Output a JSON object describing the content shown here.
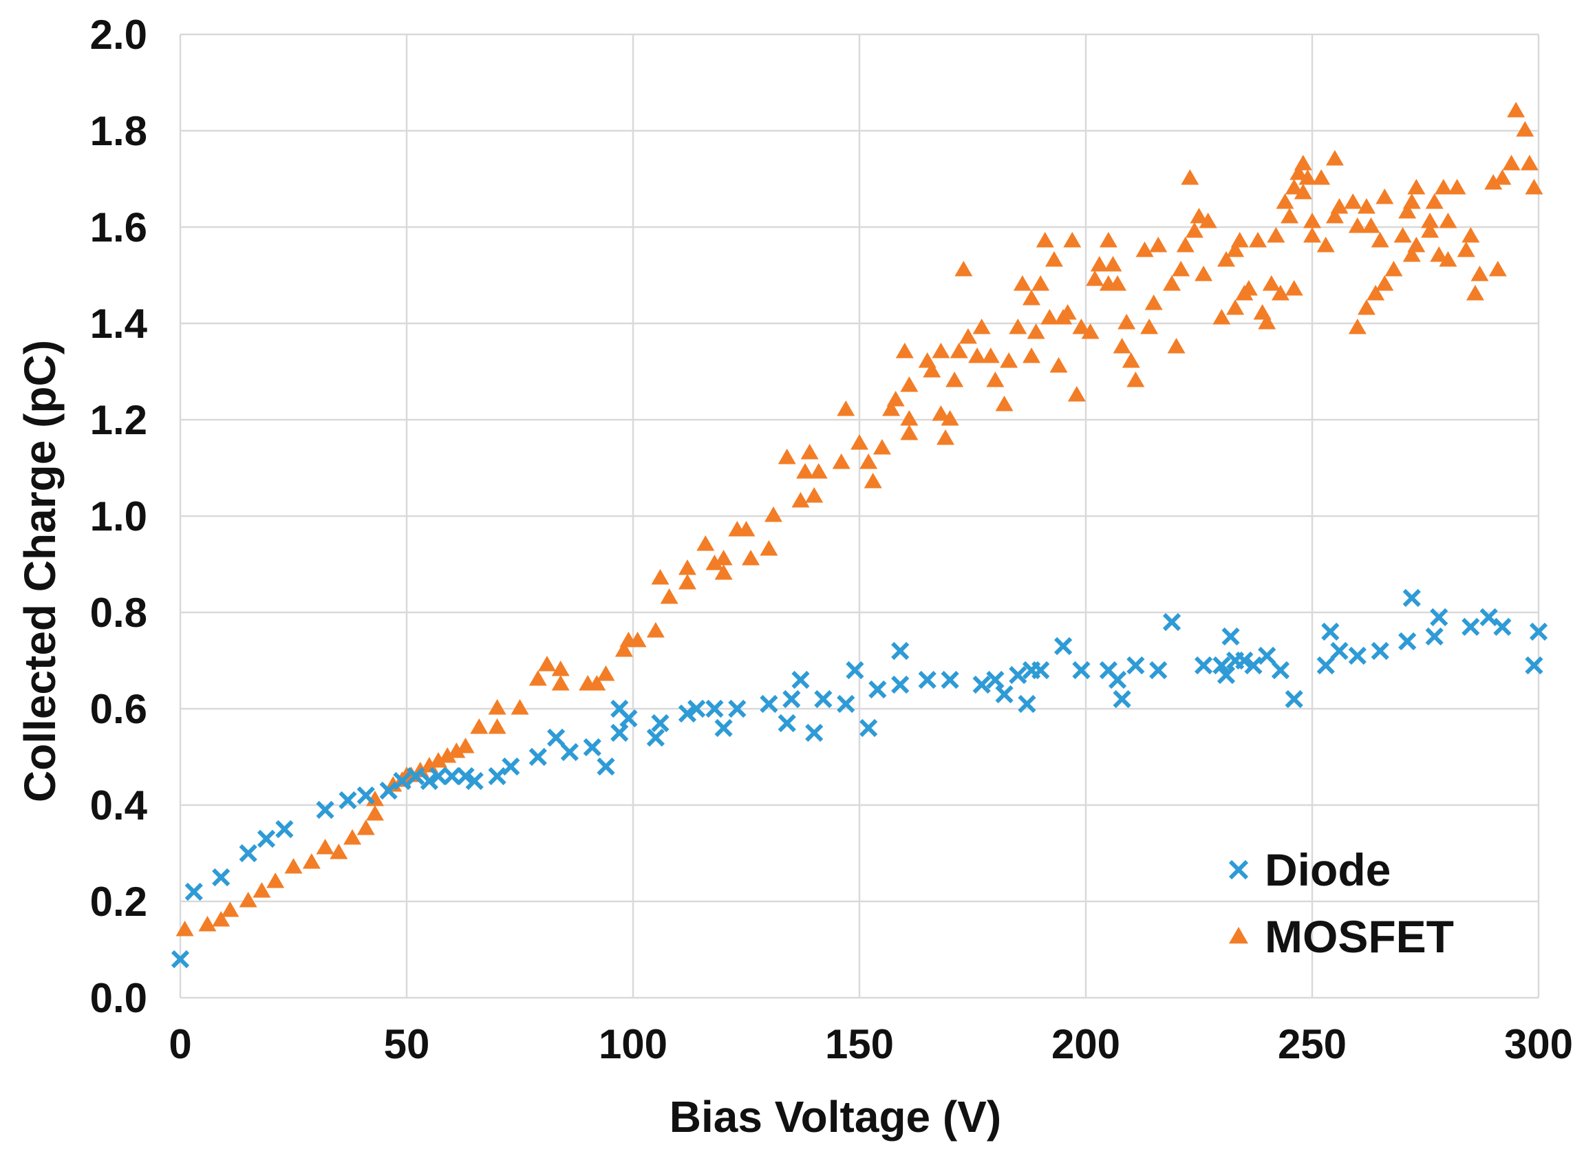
{
  "chart_data": {
    "type": "scatter",
    "title": "",
    "xlabel": "Bias Voltage (V)",
    "ylabel": "Collected Charge (pC)",
    "xlim": [
      0,
      300
    ],
    "ylim": [
      0,
      2.0
    ],
    "xticks": [
      0,
      50,
      100,
      150,
      200,
      250,
      300
    ],
    "yticks": [
      0.0,
      0.2,
      0.4,
      0.6,
      0.8,
      1.0,
      1.2,
      1.4,
      1.6,
      1.8,
      2.0
    ],
    "xtick_labels": [
      "0",
      "50",
      "100",
      "150",
      "200",
      "250",
      "300"
    ],
    "ytick_labels": [
      "0.0",
      "0.2",
      "0.4",
      "0.6",
      "0.8",
      "1.0",
      "1.2",
      "1.4",
      "1.6",
      "1.8",
      "2.0"
    ],
    "grid": true,
    "legend_position": "bottom-right",
    "series": [
      {
        "name": "Diode",
        "marker": "x",
        "color": "#2e9bd6",
        "points": [
          [
            0,
            0.08
          ],
          [
            3,
            0.22
          ],
          [
            9,
            0.25
          ],
          [
            15,
            0.3
          ],
          [
            19,
            0.33
          ],
          [
            23,
            0.35
          ],
          [
            32,
            0.39
          ],
          [
            37,
            0.41
          ],
          [
            41,
            0.42
          ],
          [
            46,
            0.43
          ],
          [
            49,
            0.45
          ],
          [
            52,
            0.46
          ],
          [
            55,
            0.45
          ],
          [
            57,
            0.46
          ],
          [
            60,
            0.46
          ],
          [
            63,
            0.46
          ],
          [
            65,
            0.45
          ],
          [
            70,
            0.46
          ],
          [
            73,
            0.48
          ],
          [
            79,
            0.5
          ],
          [
            83,
            0.54
          ],
          [
            86,
            0.51
          ],
          [
            91,
            0.52
          ],
          [
            94,
            0.48
          ],
          [
            97,
            0.6
          ],
          [
            97,
            0.55
          ],
          [
            99,
            0.58
          ],
          [
            105,
            0.54
          ],
          [
            106,
            0.57
          ],
          [
            112,
            0.59
          ],
          [
            114,
            0.6
          ],
          [
            118,
            0.6
          ],
          [
            120,
            0.56
          ],
          [
            123,
            0.6
          ],
          [
            130,
            0.61
          ],
          [
            134,
            0.57
          ],
          [
            135,
            0.62
          ],
          [
            137,
            0.66
          ],
          [
            140,
            0.55
          ],
          [
            142,
            0.62
          ],
          [
            147,
            0.61
          ],
          [
            149,
            0.68
          ],
          [
            152,
            0.56
          ],
          [
            154,
            0.64
          ],
          [
            159,
            0.72
          ],
          [
            159,
            0.65
          ],
          [
            165,
            0.66
          ],
          [
            170,
            0.66
          ],
          [
            177,
            0.65
          ],
          [
            180,
            0.66
          ],
          [
            182,
            0.63
          ],
          [
            185,
            0.67
          ],
          [
            187,
            0.61
          ],
          [
            188,
            0.68
          ],
          [
            190,
            0.68
          ],
          [
            195,
            0.73
          ],
          [
            199,
            0.68
          ],
          [
            205,
            0.68
          ],
          [
            207,
            0.66
          ],
          [
            208,
            0.62
          ],
          [
            211,
            0.69
          ],
          [
            216,
            0.68
          ],
          [
            219,
            0.78
          ],
          [
            226,
            0.69
          ],
          [
            230,
            0.69
          ],
          [
            231,
            0.67
          ],
          [
            232,
            0.75
          ],
          [
            233,
            0.7
          ],
          [
            235,
            0.7
          ],
          [
            237,
            0.69
          ],
          [
            240,
            0.71
          ],
          [
            243,
            0.68
          ],
          [
            246,
            0.62
          ],
          [
            253,
            0.69
          ],
          [
            254,
            0.76
          ],
          [
            256,
            0.72
          ],
          [
            260,
            0.71
          ],
          [
            265,
            0.72
          ],
          [
            271,
            0.74
          ],
          [
            272,
            0.83
          ],
          [
            277,
            0.75
          ],
          [
            278,
            0.79
          ],
          [
            285,
            0.77
          ],
          [
            289,
            0.79
          ],
          [
            292,
            0.77
          ],
          [
            299,
            0.69
          ],
          [
            300,
            0.76
          ]
        ]
      },
      {
        "name": "MOSFET",
        "marker": "triangle",
        "color": "#f27d26",
        "points": [
          [
            1,
            0.14
          ],
          [
            6,
            0.15
          ],
          [
            9,
            0.16
          ],
          [
            11,
            0.18
          ],
          [
            15,
            0.2
          ],
          [
            18,
            0.22
          ],
          [
            21,
            0.24
          ],
          [
            25,
            0.27
          ],
          [
            29,
            0.28
          ],
          [
            32,
            0.31
          ],
          [
            35,
            0.3
          ],
          [
            38,
            0.33
          ],
          [
            41,
            0.35
          ],
          [
            43,
            0.38
          ],
          [
            43,
            0.41
          ],
          [
            47,
            0.44
          ],
          [
            49,
            0.45
          ],
          [
            50,
            0.46
          ],
          [
            51,
            0.46
          ],
          [
            53,
            0.47
          ],
          [
            55,
            0.48
          ],
          [
            57,
            0.49
          ],
          [
            59,
            0.5
          ],
          [
            61,
            0.51
          ],
          [
            63,
            0.52
          ],
          [
            66,
            0.56
          ],
          [
            70,
            0.6
          ],
          [
            70,
            0.56
          ],
          [
            75,
            0.6
          ],
          [
            79,
            0.66
          ],
          [
            81,
            0.69
          ],
          [
            84,
            0.68
          ],
          [
            84,
            0.65
          ],
          [
            90,
            0.65
          ],
          [
            92,
            0.65
          ],
          [
            94,
            0.67
          ],
          [
            98,
            0.72
          ],
          [
            99,
            0.74
          ],
          [
            101,
            0.74
          ],
          [
            105,
            0.76
          ],
          [
            106,
            0.87
          ],
          [
            108,
            0.83
          ],
          [
            112,
            0.86
          ],
          [
            112,
            0.89
          ],
          [
            116,
            0.94
          ],
          [
            118,
            0.9
          ],
          [
            120,
            0.91
          ],
          [
            120,
            0.88
          ],
          [
            123,
            0.97
          ],
          [
            125,
            0.97
          ],
          [
            126,
            0.91
          ],
          [
            130,
            0.93
          ],
          [
            131,
            1.0
          ],
          [
            134,
            1.12
          ],
          [
            137,
            1.03
          ],
          [
            138,
            1.09
          ],
          [
            139,
            1.13
          ],
          [
            140,
            1.04
          ],
          [
            141,
            1.09
          ],
          [
            146,
            1.11
          ],
          [
            147,
            1.22
          ],
          [
            150,
            1.15
          ],
          [
            152,
            1.11
          ],
          [
            153,
            1.07
          ],
          [
            155,
            1.14
          ],
          [
            157,
            1.22
          ],
          [
            158,
            1.24
          ],
          [
            160,
            1.34
          ],
          [
            161,
            1.27
          ],
          [
            161,
            1.2
          ],
          [
            161,
            1.17
          ],
          [
            165,
            1.32
          ],
          [
            166,
            1.3
          ],
          [
            168,
            1.34
          ],
          [
            168,
            1.21
          ],
          [
            169,
            1.16
          ],
          [
            170,
            1.2
          ],
          [
            171,
            1.28
          ],
          [
            172,
            1.34
          ],
          [
            173,
            1.51
          ],
          [
            174,
            1.37
          ],
          [
            176,
            1.33
          ],
          [
            177,
            1.39
          ],
          [
            179,
            1.33
          ],
          [
            180,
            1.28
          ],
          [
            182,
            1.23
          ],
          [
            183,
            1.32
          ],
          [
            185,
            1.39
          ],
          [
            186,
            1.48
          ],
          [
            188,
            1.45
          ],
          [
            188,
            1.33
          ],
          [
            189,
            1.38
          ],
          [
            190,
            1.48
          ],
          [
            191,
            1.57
          ],
          [
            192,
            1.41
          ],
          [
            193,
            1.53
          ],
          [
            194,
            1.31
          ],
          [
            195,
            1.41
          ],
          [
            196,
            1.42
          ],
          [
            197,
            1.57
          ],
          [
            198,
            1.25
          ],
          [
            199,
            1.39
          ],
          [
            201,
            1.38
          ],
          [
            202,
            1.49
          ],
          [
            203,
            1.52
          ],
          [
            205,
            1.57
          ],
          [
            205,
            1.48
          ],
          [
            206,
            1.52
          ],
          [
            207,
            1.48
          ],
          [
            208,
            1.35
          ],
          [
            209,
            1.4
          ],
          [
            210,
            1.32
          ],
          [
            211,
            1.28
          ],
          [
            213,
            1.55
          ],
          [
            214,
            1.39
          ],
          [
            215,
            1.44
          ],
          [
            216,
            1.56
          ],
          [
            219,
            1.48
          ],
          [
            220,
            1.35
          ],
          [
            221,
            1.51
          ],
          [
            222,
            1.56
          ],
          [
            223,
            1.7
          ],
          [
            224,
            1.59
          ],
          [
            225,
            1.62
          ],
          [
            226,
            1.5
          ],
          [
            227,
            1.61
          ],
          [
            230,
            1.41
          ],
          [
            231,
            1.53
          ],
          [
            233,
            1.55
          ],
          [
            233,
            1.43
          ],
          [
            234,
            1.57
          ],
          [
            235,
            1.46
          ],
          [
            236,
            1.47
          ],
          [
            238,
            1.57
          ],
          [
            239,
            1.42
          ],
          [
            240,
            1.4
          ],
          [
            241,
            1.48
          ],
          [
            242,
            1.58
          ],
          [
            243,
            1.46
          ],
          [
            244,
            1.65
          ],
          [
            245,
            1.62
          ],
          [
            246,
            1.47
          ],
          [
            246,
            1.68
          ],
          [
            247,
            1.71
          ],
          [
            248,
            1.73
          ],
          [
            248,
            1.67
          ],
          [
            249,
            1.7
          ],
          [
            250,
            1.58
          ],
          [
            250,
            1.61
          ],
          [
            252,
            1.7
          ],
          [
            253,
            1.56
          ],
          [
            255,
            1.74
          ],
          [
            255,
            1.62
          ],
          [
            256,
            1.64
          ],
          [
            259,
            1.65
          ],
          [
            260,
            1.39
          ],
          [
            260,
            1.6
          ],
          [
            262,
            1.43
          ],
          [
            262,
            1.64
          ],
          [
            263,
            1.6
          ],
          [
            264,
            1.46
          ],
          [
            265,
            1.57
          ],
          [
            266,
            1.66
          ],
          [
            266,
            1.48
          ],
          [
            268,
            1.51
          ],
          [
            270,
            1.58
          ],
          [
            271,
            1.63
          ],
          [
            272,
            1.54
          ],
          [
            272,
            1.65
          ],
          [
            273,
            1.68
          ],
          [
            273,
            1.56
          ],
          [
            276,
            1.59
          ],
          [
            276,
            1.61
          ],
          [
            277,
            1.65
          ],
          [
            278,
            1.54
          ],
          [
            279,
            1.68
          ],
          [
            280,
            1.61
          ],
          [
            280,
            1.53
          ],
          [
            282,
            1.68
          ],
          [
            284,
            1.55
          ],
          [
            285,
            1.58
          ],
          [
            286,
            1.46
          ],
          [
            287,
            1.5
          ],
          [
            290,
            1.69
          ],
          [
            291,
            1.51
          ],
          [
            292,
            1.7
          ],
          [
            294,
            1.73
          ],
          [
            295,
            1.84
          ],
          [
            297,
            1.8
          ],
          [
            298,
            1.73
          ],
          [
            299,
            1.68
          ]
        ]
      }
    ]
  }
}
